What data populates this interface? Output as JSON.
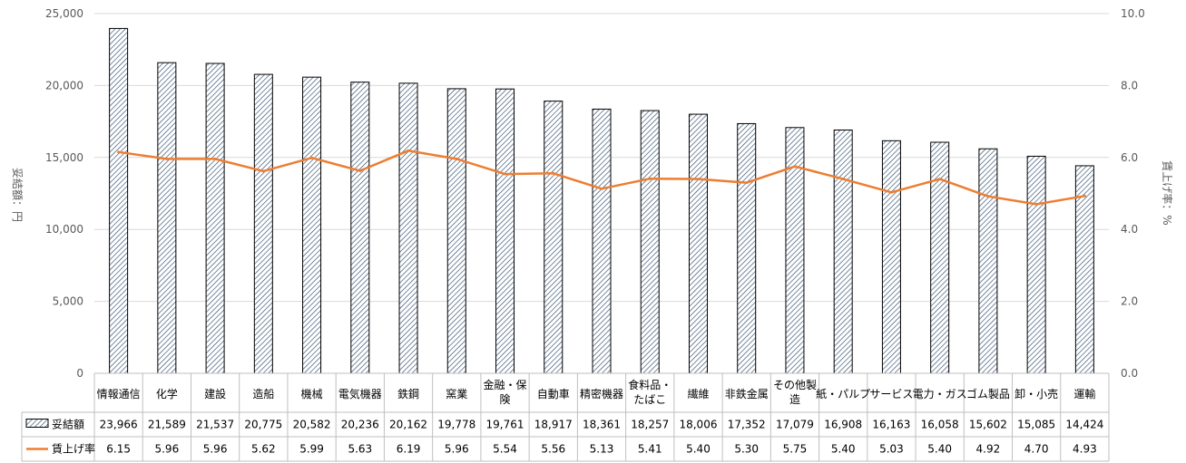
{
  "chart_data": {
    "type": "bar+line",
    "categories": [
      [
        "情報通信"
      ],
      [
        "化学"
      ],
      [
        "建設"
      ],
      [
        "造船"
      ],
      [
        "機械"
      ],
      [
        "電気機器"
      ],
      [
        "鉄鋼"
      ],
      [
        "窯業"
      ],
      [
        "金融・保",
        "険"
      ],
      [
        "自動車"
      ],
      [
        "精密機器"
      ],
      [
        "食料品・",
        "たばこ"
      ],
      [
        "繊維"
      ],
      [
        "非鉄金属"
      ],
      [
        "その他製",
        "造"
      ],
      [
        "紙・パルプ"
      ],
      [
        "サービス"
      ],
      [
        "電力・ガス"
      ],
      [
        "ゴム製品"
      ],
      [
        "卸・小売"
      ],
      [
        "運輸"
      ]
    ],
    "series": [
      {
        "name": "妥結額",
        "kind": "bar",
        "axis": "left",
        "values": [
          23966,
          21589,
          21537,
          20775,
          20582,
          20236,
          20162,
          19778,
          19761,
          18917,
          18361,
          18257,
          18006,
          17352,
          17079,
          16908,
          16163,
          16058,
          15602,
          15085,
          14424
        ],
        "labels": [
          "23,966",
          "21,589",
          "21,537",
          "20,775",
          "20,582",
          "20,236",
          "20,162",
          "19,778",
          "19,761",
          "18,917",
          "18,361",
          "18,257",
          "18,006",
          "17,352",
          "17,079",
          "16,908",
          "16,163",
          "16,058",
          "15,602",
          "15,085",
          "14,424"
        ],
        "fill": "hatched",
        "color": "#2e4a6b"
      },
      {
        "name": "賃上げ率",
        "kind": "line",
        "axis": "right",
        "values": [
          6.15,
          5.96,
          5.96,
          5.62,
          5.99,
          5.63,
          6.19,
          5.96,
          5.54,
          5.56,
          5.13,
          5.41,
          5.4,
          5.3,
          5.75,
          5.4,
          5.03,
          5.4,
          4.92,
          4.7,
          4.93
        ],
        "labels": [
          "6.15",
          "5.96",
          "5.96",
          "5.62",
          "5.99",
          "5.63",
          "6.19",
          "5.96",
          "5.54",
          "5.56",
          "5.13",
          "5.41",
          "5.40",
          "5.30",
          "5.75",
          "5.40",
          "5.03",
          "5.40",
          "4.92",
          "4.70",
          "4.93"
        ],
        "color": "#ed7d31"
      }
    ],
    "y_left": {
      "label": "妥結額：円",
      "range": [
        0,
        25000
      ],
      "ticks": [
        "0",
        "5,000",
        "10,000",
        "15,000",
        "20,000",
        "25,000"
      ]
    },
    "y_right": {
      "label": "賃上げ率：%",
      "range": [
        0,
        10
      ],
      "ticks": [
        "0.0",
        "2.0",
        "4.0",
        "6.0",
        "8.0",
        "10.0"
      ]
    },
    "grid": true,
    "legend": "data-table",
    "grid_color": "#d9d9d9",
    "table_border_color": "#bfbfbf"
  }
}
